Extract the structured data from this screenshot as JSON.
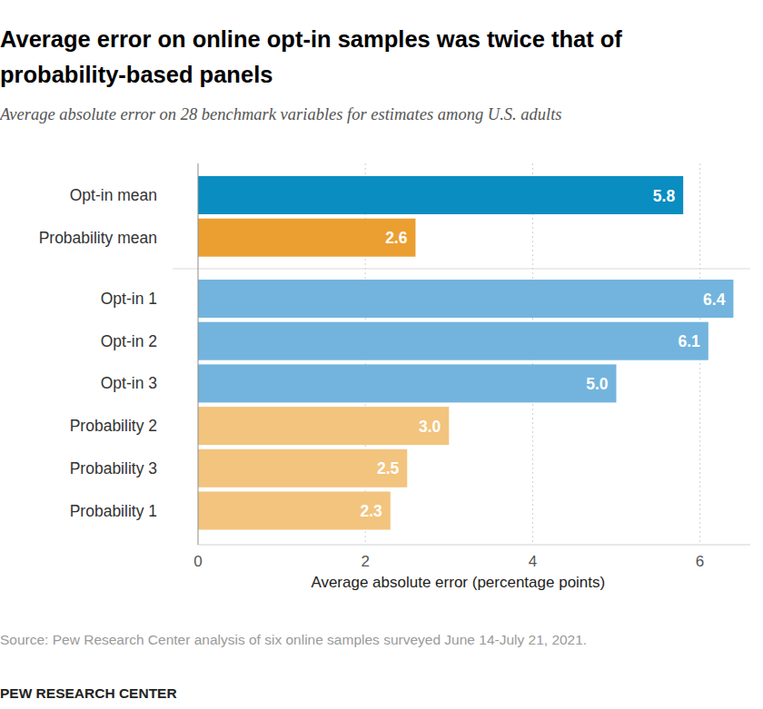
{
  "chart_data": {
    "type": "bar",
    "orientation": "horizontal",
    "title": "Average error on online opt-in samples was twice that of probability-based panels",
    "subtitle": "Average absolute error on 28 benchmark variables for estimates among U.S. adults",
    "categories": [
      "Opt-in mean",
      "Probability mean",
      "Opt-in 1",
      "Opt-in 2",
      "Opt-in 3",
      "Probability 2",
      "Probability 3",
      "Probability 1"
    ],
    "values": [
      5.8,
      2.6,
      6.4,
      6.1,
      5.0,
      3.0,
      2.5,
      2.3
    ],
    "value_labels": [
      "5.8",
      "2.6",
      "6.4",
      "6.1",
      "5.0",
      "3.0",
      "2.5",
      "2.3"
    ],
    "colors": [
      "#0a8dc1",
      "#eb9f31",
      "#72b4dd",
      "#72b4dd",
      "#72b4dd",
      "#f2c47e",
      "#f2c47e",
      "#f2c47e"
    ],
    "xlabel": "Average absolute error (percentage points)",
    "xlim": [
      0,
      6.6
    ],
    "xticks": [
      0,
      2,
      4,
      6
    ],
    "grid": true,
    "data_labels": true,
    "annotations": [
      "Source: Pew Research Center analysis of six online samples surveyed June 14-July 21, 2021.",
      "PEW RESEARCH CENTER"
    ]
  }
}
